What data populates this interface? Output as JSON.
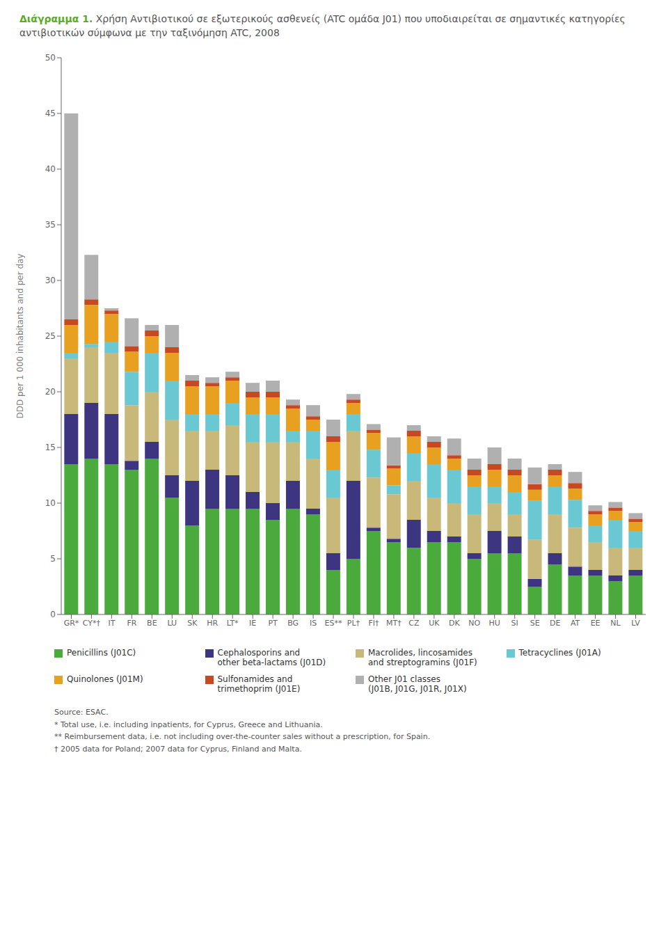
{
  "chart_data": {
    "type": "bar",
    "stacked": true,
    "grid": false,
    "legend": "bottom",
    "title": "Διάγραμμα 1.",
    "subtitle": "Χρήση Αντιβιοτικού σε εξωτερικούς ασθενείς (ATC ομάδα J01) που υποδιαιρείται σε σημαντικές κατηγορίες αντιβιοτικών σύμφωνα με την ταξινόμηση ATC, 2008",
    "y_label": "DDD per 1 000 inhabitants and per day",
    "ylim": [
      0,
      50
    ],
    "yticks": [
      0,
      5,
      10,
      15,
      20,
      25,
      30,
      35,
      40,
      45,
      50
    ],
    "categories": [
      "GR*",
      "CY*†",
      "IT",
      "FR",
      "BE",
      "LU",
      "SK",
      "HR",
      "LT*",
      "IE",
      "PT",
      "BG",
      "IS",
      "ES**",
      "PL†",
      "FI†",
      "MT†",
      "CZ",
      "UK",
      "DK",
      "NO",
      "HU",
      "SI",
      "SE",
      "DE",
      "AT",
      "EE",
      "NL",
      "LV"
    ],
    "series": [
      {
        "name": "Penicillins (J01C)",
        "color": "#4aaa3c",
        "values": [
          13.5,
          14.0,
          13.5,
          13.0,
          14.0,
          10.5,
          8.0,
          9.5,
          9.5,
          9.5,
          8.5,
          9.5,
          9.0,
          4.0,
          5.0,
          7.5,
          6.5,
          6.0,
          6.5,
          6.5,
          5.0,
          5.5,
          5.5,
          2.5,
          4.5,
          3.5,
          3.5,
          3.0,
          3.5
        ]
      },
      {
        "name": "Cephalosporins and\nother beta-lactams (J01D)",
        "color": "#3d3580",
        "values": [
          4.5,
          5.0,
          4.5,
          0.8,
          1.5,
          2.0,
          4.0,
          3.5,
          3.0,
          1.5,
          1.5,
          2.5,
          0.5,
          1.5,
          7.0,
          0.3,
          0.3,
          2.5,
          1.0,
          0.5,
          0.5,
          2.0,
          1.5,
          0.7,
          1.0,
          0.8,
          0.5,
          0.5,
          0.5
        ]
      },
      {
        "name": "Macrolides, lincosamides\nand streptogramins (J01F)",
        "color": "#c8b97a",
        "values": [
          5.0,
          5.0,
          5.5,
          5.0,
          4.5,
          5.0,
          4.5,
          3.5,
          4.5,
          4.5,
          5.5,
          3.5,
          4.5,
          5.0,
          4.5,
          4.5,
          4.0,
          3.5,
          3.0,
          3.0,
          3.5,
          2.5,
          2.0,
          3.5,
          3.5,
          3.5,
          2.5,
          2.5,
          2.0
        ]
      },
      {
        "name": "Tetracyclines (J01A)",
        "color": "#6ac8d2",
        "values": [
          0.5,
          0.3,
          1.0,
          3.0,
          3.5,
          3.5,
          1.5,
          1.5,
          2.0,
          2.5,
          2.5,
          1.0,
          2.5,
          2.5,
          1.5,
          2.5,
          0.8,
          2.5,
          3.0,
          3.0,
          2.5,
          1.5,
          2.0,
          3.5,
          2.5,
          2.5,
          1.5,
          2.5,
          1.5
        ]
      },
      {
        "name": "Quinolones (J01M)",
        "color": "#e8a020",
        "values": [
          2.5,
          3.5,
          2.5,
          1.8,
          1.5,
          2.5,
          2.5,
          2.5,
          2.0,
          1.5,
          1.5,
          2.0,
          1.0,
          2.5,
          1.0,
          1.5,
          1.5,
          1.5,
          1.5,
          1.0,
          1.0,
          1.5,
          1.5,
          1.0,
          1.0,
          1.0,
          1.0,
          0.8,
          0.8
        ]
      },
      {
        "name": "Sulfonamides and\ntrimethoprim (J01E)",
        "color": "#c84820",
        "values": [
          0.5,
          0.5,
          0.3,
          0.5,
          0.5,
          0.5,
          0.5,
          0.3,
          0.3,
          0.5,
          0.5,
          0.3,
          0.3,
          0.5,
          0.3,
          0.3,
          0.3,
          0.5,
          0.5,
          0.3,
          0.5,
          0.5,
          0.5,
          0.5,
          0.5,
          0.5,
          0.3,
          0.3,
          0.3
        ]
      },
      {
        "name": "Other J01 classes\n(J01B, J01G, J01R, J01X)",
        "color": "#b0b0b0",
        "values": [
          18.5,
          4.0,
          0.2,
          2.5,
          0.5,
          2.0,
          0.5,
          0.5,
          0.5,
          0.8,
          1.0,
          0.5,
          1.0,
          1.5,
          0.5,
          0.5,
          2.5,
          0.5,
          0.5,
          1.5,
          1.0,
          1.5,
          1.0,
          1.5,
          0.5,
          1.0,
          0.5,
          0.5,
          0.5
        ]
      }
    ],
    "annotations": [
      "Source: ESAC.",
      "* Total use, i.e. including inpatients, for Cyprus, Greece and Lithuania.",
      "** Reimbursement data, i.e. not including over-the-counter sales without a prescription, for Spain.",
      "† 2005 data for Poland; 2007 data for Cyprus, Finland and Malta."
    ]
  }
}
